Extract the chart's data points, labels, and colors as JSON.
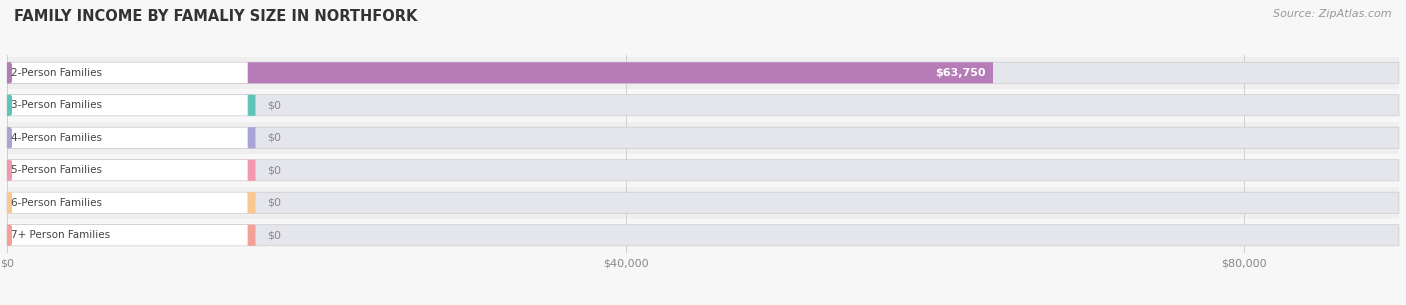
{
  "title": "FAMILY INCOME BY FAMALIY SIZE IN NORTHFORK",
  "source": "Source: ZipAtlas.com",
  "categories": [
    "2-Person Families",
    "3-Person Families",
    "4-Person Families",
    "5-Person Families",
    "6-Person Families",
    "7+ Person Families"
  ],
  "values": [
    63750,
    0,
    0,
    0,
    0,
    0
  ],
  "bar_colors": [
    "#b57cb8",
    "#5ec4b8",
    "#a8a4d4",
    "#f498b0",
    "#f8c890",
    "#f4a098"
  ],
  "xlim": [
    0,
    90000
  ],
  "xticks": [
    0,
    40000,
    80000
  ],
  "xtick_labels": [
    "$0",
    "$40,000",
    "$80,000"
  ],
  "background_color": "#f7f7f7",
  "bar_bg_color": "#e5e5ec",
  "row_bg_even": "#efefef",
  "row_bg_odd": "#f7f7f7",
  "value_label_2person": "$63,750",
  "grid_color": "#d0d0d0",
  "title_fontsize": 10.5,
  "source_fontsize": 8,
  "label_fontsize": 8,
  "tick_fontsize": 8,
  "pill_label_fontsize": 7.5
}
